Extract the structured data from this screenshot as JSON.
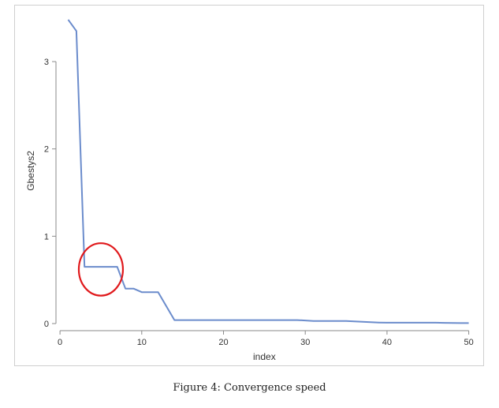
{
  "caption": "Figure 4: Convergence speed",
  "chart_data": {
    "type": "line",
    "xlabel": "index",
    "ylabel": "Gbestys2",
    "xlim": [
      0,
      50
    ],
    "ylim": [
      0,
      3.5
    ],
    "xticks": [
      0,
      10,
      20,
      30,
      40,
      50
    ],
    "yticks": [
      0,
      1,
      2,
      3
    ],
    "grid": false,
    "series_color": "#6b8ccc",
    "annotation_color": "#e0191c",
    "annotation": {
      "shape": "ellipse",
      "center": [
        5,
        0.62
      ],
      "rx_data": 2.7,
      "ry_data": 0.3
    },
    "x": [
      1,
      2,
      3,
      4,
      5,
      6,
      7,
      8,
      9,
      10,
      11,
      12,
      13,
      14,
      15,
      16,
      17,
      18,
      19,
      20,
      21,
      22,
      23,
      24,
      25,
      26,
      27,
      28,
      29,
      30,
      31,
      32,
      33,
      34,
      35,
      36,
      37,
      38,
      39,
      40,
      41,
      42,
      43,
      44,
      45,
      46,
      47,
      48,
      49,
      50
    ],
    "y": [
      3.48,
      3.35,
      0.65,
      0.65,
      0.65,
      0.65,
      0.65,
      0.4,
      0.4,
      0.36,
      0.36,
      0.36,
      0.2,
      0.04,
      0.04,
      0.04,
      0.04,
      0.04,
      0.04,
      0.04,
      0.04,
      0.04,
      0.04,
      0.04,
      0.04,
      0.04,
      0.04,
      0.04,
      0.04,
      0.035,
      0.03,
      0.03,
      0.03,
      0.03,
      0.03,
      0.025,
      0.02,
      0.015,
      0.012,
      0.01,
      0.01,
      0.01,
      0.01,
      0.01,
      0.01,
      0.01,
      0.008,
      0.006,
      0.005,
      0.005
    ]
  }
}
